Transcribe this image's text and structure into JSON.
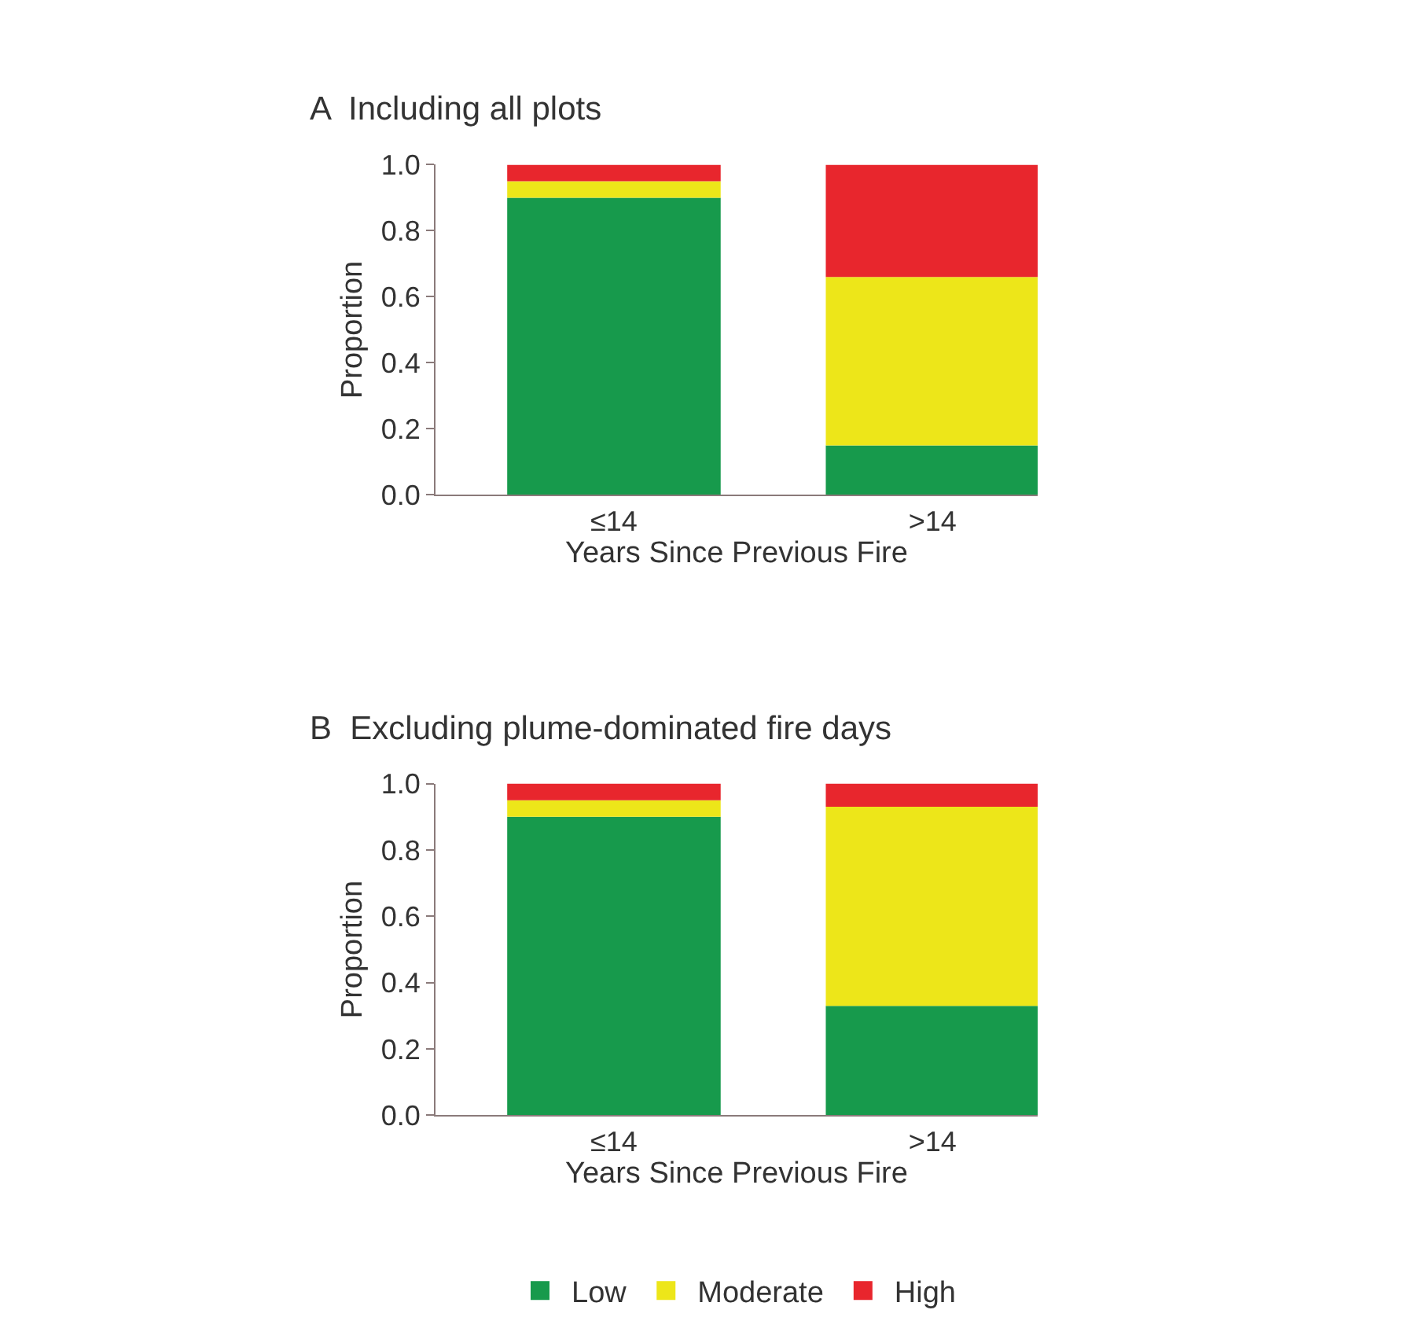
{
  "chart_data": [
    {
      "type": "bar",
      "title": "A  Including all plots",
      "xlabel": "Years Since Previous Fire",
      "ylabel": "Proportion",
      "categories": [
        "≤14",
        ">14"
      ],
      "stacked": true,
      "ylim": [
        0,
        1
      ],
      "yticks": [
        "0.0",
        0.2,
        0.4,
        0.6,
        0.8,
        "1.0"
      ],
      "legend": "bottom",
      "series": [
        {
          "name": "Low",
          "color": "#179a4c",
          "values": [
            0.9,
            0.15
          ]
        },
        {
          "name": "Moderate",
          "color": "#ede619",
          "values": [
            0.05,
            0.51
          ]
        },
        {
          "name": "High",
          "color": "#e8262d",
          "values": [
            0.05,
            0.34
          ]
        }
      ]
    },
    {
      "type": "bar",
      "title": "B  Excluding plume-dominated fire days",
      "xlabel": "Years Since Previous Fire",
      "ylabel": "Proportion",
      "categories": [
        "≤14",
        ">14"
      ],
      "stacked": true,
      "ylim": [
        0,
        1
      ],
      "yticks": [
        "0.0",
        0.2,
        0.4,
        0.6,
        0.8,
        "1.0"
      ],
      "legend": "bottom",
      "series": [
        {
          "name": "Low",
          "color": "#179a4c",
          "values": [
            0.9,
            0.33
          ]
        },
        {
          "name": "Moderate",
          "color": "#ede619",
          "values": [
            0.05,
            0.6
          ]
        },
        {
          "name": "High",
          "color": "#e8262d",
          "values": [
            0.05,
            0.07
          ]
        }
      ]
    }
  ]
}
